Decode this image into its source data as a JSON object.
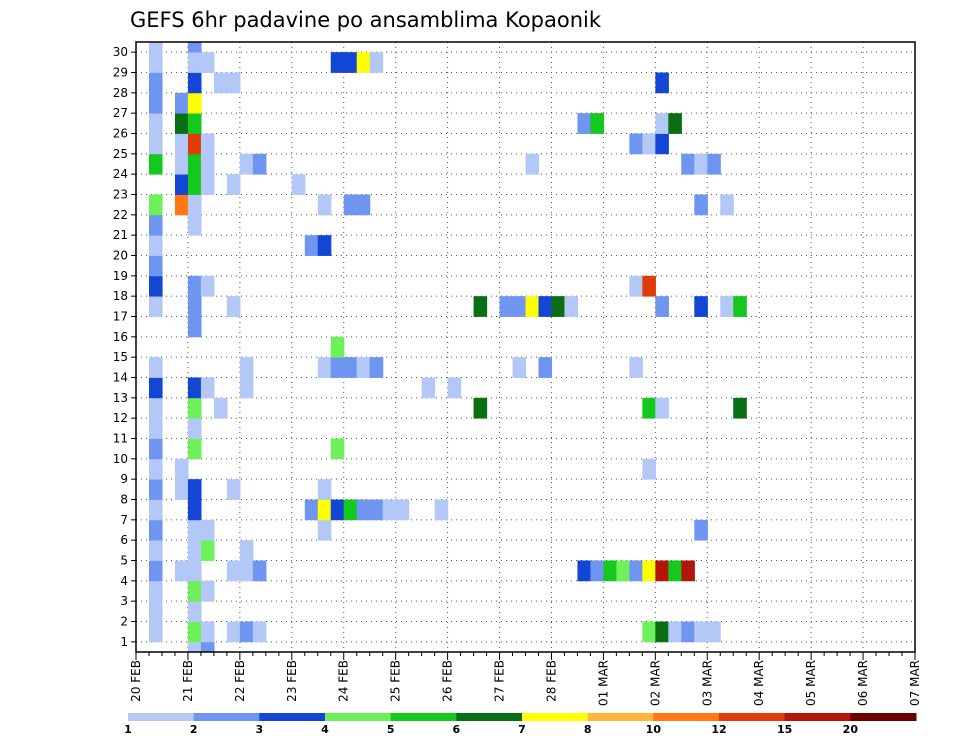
{
  "chart_data": {
    "type": "heatmap",
    "title": "GEFS 6hr padavine po ansamblima Kopaonik",
    "x_axis": {
      "tick_labels": [
        "20 FEB",
        "21 FEB",
        "22 FEB",
        "23 FEB",
        "24 FEB",
        "25 FEB",
        "26 FEB",
        "27 FEB",
        "28 FEB",
        "01 MAR",
        "02 MAR",
        "03 MAR",
        "04 MAR",
        "05 MAR",
        "06 MAR",
        "07 MAR"
      ],
      "range_days": [
        0,
        15
      ],
      "step_hours": 6
    },
    "y_axis": {
      "tick_labels": [
        "1",
        "2",
        "3",
        "4",
        "5",
        "6",
        "7",
        "8",
        "9",
        "10",
        "11",
        "12",
        "13",
        "14",
        "15",
        "16",
        "17",
        "18",
        "19",
        "20",
        "21",
        "22",
        "23",
        "24",
        "25",
        "26",
        "27",
        "28",
        "29",
        "30"
      ],
      "range": [
        1,
        30
      ]
    },
    "grid": "dotted",
    "colorbar": {
      "position": "bottom",
      "labels": [
        "1",
        "2",
        "3",
        "4",
        "5",
        "6",
        "7",
        "8",
        "10",
        "12",
        "15",
        "20"
      ],
      "colors": [
        "#b4c8f8",
        "#6e96f0",
        "#1446d6",
        "#6ef05a",
        "#14c81e",
        "#0a6e14",
        "#ffff00",
        "#ffb43c",
        "#ff7814",
        "#e03c0a",
        "#b4140a",
        "#6e0000"
      ]
    },
    "cells": [
      [
        1,
        1,
        1
      ],
      [
        1,
        2,
        1
      ],
      [
        1,
        3,
        1
      ],
      [
        1,
        4,
        2
      ],
      [
        1,
        5,
        1
      ],
      [
        1,
        6,
        2
      ],
      [
        1,
        7,
        1
      ],
      [
        1,
        8,
        2
      ],
      [
        1,
        9,
        1
      ],
      [
        1,
        10,
        2
      ],
      [
        1,
        11,
        1
      ],
      [
        1,
        12,
        1
      ],
      [
        1,
        13,
        3
      ],
      [
        1,
        14,
        1
      ],
      [
        1,
        17,
        1
      ],
      [
        1,
        18,
        3
      ],
      [
        1,
        19,
        2
      ],
      [
        1,
        20,
        1
      ],
      [
        1,
        21,
        2
      ],
      [
        1,
        22,
        4
      ],
      [
        1,
        24,
        5
      ],
      [
        1,
        25,
        1
      ],
      [
        1,
        26,
        1
      ],
      [
        1,
        27,
        2
      ],
      [
        1,
        28,
        2
      ],
      [
        1,
        29,
        1
      ],
      [
        1,
        30,
        1
      ],
      [
        3,
        4,
        1
      ],
      [
        3,
        8,
        1
      ],
      [
        3,
        9,
        1
      ],
      [
        3,
        22,
        9
      ],
      [
        3,
        23,
        3
      ],
      [
        3,
        24,
        1
      ],
      [
        3,
        25,
        1
      ],
      [
        3,
        26,
        6
      ],
      [
        3,
        27,
        2
      ],
      [
        4,
        0,
        1
      ],
      [
        4,
        1,
        4
      ],
      [
        4,
        2,
        1
      ],
      [
        4,
        3,
        4
      ],
      [
        4,
        4,
        1
      ],
      [
        4,
        5,
        1
      ],
      [
        4,
        6,
        1
      ],
      [
        4,
        7,
        3
      ],
      [
        4,
        8,
        3
      ],
      [
        4,
        10,
        4
      ],
      [
        4,
        11,
        1
      ],
      [
        4,
        12,
        4
      ],
      [
        4,
        13,
        3
      ],
      [
        4,
        16,
        2
      ],
      [
        4,
        17,
        2
      ],
      [
        4,
        18,
        2
      ],
      [
        4,
        21,
        1
      ],
      [
        4,
        22,
        1
      ],
      [
        4,
        23,
        5
      ],
      [
        4,
        24,
        5
      ],
      [
        4,
        25,
        10
      ],
      [
        4,
        26,
        5
      ],
      [
        4,
        27,
        7
      ],
      [
        4,
        28,
        3
      ],
      [
        4,
        29,
        1
      ],
      [
        4,
        30,
        2
      ],
      [
        5,
        0,
        2
      ],
      [
        5,
        1,
        1
      ],
      [
        5,
        3,
        1
      ],
      [
        5,
        5,
        4
      ],
      [
        5,
        6,
        1
      ],
      [
        5,
        13,
        1
      ],
      [
        5,
        18,
        1
      ],
      [
        5,
        23,
        1
      ],
      [
        5,
        24,
        1
      ],
      [
        5,
        25,
        1
      ],
      [
        5,
        29,
        1
      ],
      [
        6,
        28,
        1
      ],
      [
        6,
        12,
        1
      ],
      [
        7,
        1,
        1
      ],
      [
        7,
        4,
        1
      ],
      [
        7,
        8,
        1
      ],
      [
        7,
        17,
        1
      ],
      [
        7,
        23,
        1
      ],
      [
        7,
        28,
        1
      ],
      [
        8,
        1,
        2
      ],
      [
        8,
        4,
        1
      ],
      [
        8,
        5,
        1
      ],
      [
        8,
        13,
        1
      ],
      [
        8,
        14,
        1
      ],
      [
        8,
        24,
        1
      ],
      [
        9,
        1,
        1
      ],
      [
        9,
        4,
        2
      ],
      [
        9,
        24,
        2
      ],
      [
        12,
        23,
        1
      ],
      [
        13,
        20,
        2
      ],
      [
        13,
        7,
        2
      ],
      [
        14,
        6,
        1
      ],
      [
        14,
        7,
        7
      ],
      [
        14,
        8,
        1
      ],
      [
        14,
        14,
        1
      ],
      [
        14,
        20,
        3
      ],
      [
        14,
        22,
        1
      ],
      [
        15,
        29,
        3
      ],
      [
        15,
        7,
        3
      ],
      [
        15,
        10,
        4
      ],
      [
        15,
        14,
        2
      ],
      [
        15,
        15,
        4
      ],
      [
        16,
        29,
        3
      ],
      [
        16,
        7,
        5
      ],
      [
        16,
        14,
        2
      ],
      [
        16,
        22,
        2
      ],
      [
        17,
        29,
        7
      ],
      [
        17,
        7,
        2
      ],
      [
        17,
        14,
        1
      ],
      [
        17,
        22,
        2
      ],
      [
        18,
        29,
        1
      ],
      [
        18,
        7,
        2
      ],
      [
        18,
        14,
        2
      ],
      [
        19,
        7,
        1
      ],
      [
        20,
        7,
        1
      ],
      [
        22,
        13,
        1
      ],
      [
        23,
        7,
        1
      ],
      [
        24,
        13,
        1
      ],
      [
        26,
        12,
        6
      ],
      [
        26,
        17,
        6
      ],
      [
        28,
        17,
        2
      ],
      [
        29,
        17,
        2
      ],
      [
        29,
        14,
        1
      ],
      [
        30,
        17,
        7
      ],
      [
        30,
        24,
        1
      ],
      [
        31,
        17,
        3
      ],
      [
        31,
        14,
        2
      ],
      [
        32,
        17,
        6
      ],
      [
        33,
        17,
        1
      ],
      [
        34,
        26,
        2
      ],
      [
        34,
        4,
        3
      ],
      [
        35,
        26,
        5
      ],
      [
        35,
        4,
        2
      ],
      [
        36,
        4,
        5
      ],
      [
        37,
        4,
        4
      ],
      [
        38,
        14,
        1
      ],
      [
        38,
        18,
        1
      ],
      [
        38,
        25,
        2
      ],
      [
        38,
        4,
        2
      ],
      [
        39,
        9,
        1
      ],
      [
        39,
        12,
        5
      ],
      [
        39,
        18,
        10
      ],
      [
        39,
        25,
        1
      ],
      [
        39,
        1,
        4
      ],
      [
        39,
        4,
        7
      ],
      [
        40,
        28,
        3
      ],
      [
        40,
        25,
        3
      ],
      [
        40,
        17,
        2
      ],
      [
        40,
        12,
        1
      ],
      [
        40,
        26,
        1
      ],
      [
        40,
        1,
        6
      ],
      [
        40,
        4,
        11
      ],
      [
        41,
        26,
        6
      ],
      [
        41,
        1,
        1
      ],
      [
        41,
        4,
        5
      ],
      [
        42,
        24,
        2
      ],
      [
        42,
        1,
        2
      ],
      [
        42,
        4,
        11
      ],
      [
        43,
        22,
        2
      ],
      [
        43,
        17,
        3
      ],
      [
        43,
        24,
        1
      ],
      [
        43,
        6,
        2
      ],
      [
        43,
        1,
        1
      ],
      [
        44,
        24,
        2
      ],
      [
        44,
        1,
        1
      ],
      [
        45,
        17,
        1
      ],
      [
        45,
        22,
        1
      ],
      [
        46,
        17,
        5
      ],
      [
        46,
        12,
        6
      ]
    ]
  }
}
